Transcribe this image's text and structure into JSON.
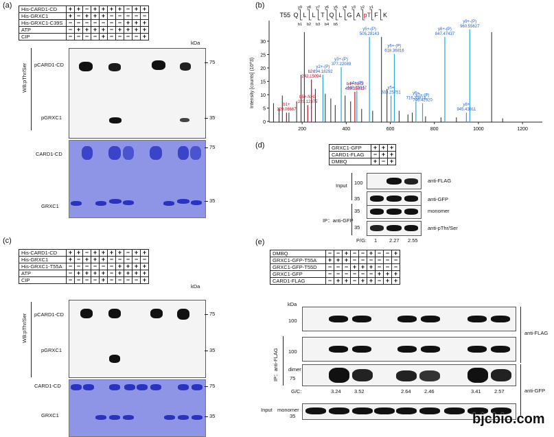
{
  "panels": {
    "a": "(a)",
    "b": "(b)",
    "c": "(c)",
    "d": "(d)",
    "e": "(e)"
  },
  "kda": "kDa",
  "a": {
    "rows": [
      {
        "name": "His-CARD1-CD",
        "signs": [
          "+",
          "+",
          "−",
          "+",
          "+",
          "+",
          "+",
          "−",
          "+",
          "+"
        ]
      },
      {
        "name": "His-GRXC1",
        "signs": [
          "+",
          "−",
          "+",
          "+",
          "+",
          "−",
          "−",
          "−",
          "−",
          "−"
        ]
      },
      {
        "name": "His-GRXC1-C39S",
        "signs": [
          "−",
          "−",
          "−",
          "−",
          "−",
          "−",
          "−",
          "+",
          "+",
          "+"
        ]
      },
      {
        "name": "ATP",
        "signs": [
          "−",
          "+",
          "+",
          "+",
          "+",
          "−",
          "+",
          "+",
          "+",
          "+"
        ]
      },
      {
        "name": "CIP",
        "signs": [
          "−",
          "−",
          "−",
          "−",
          "+",
          "−",
          "−",
          "−",
          "−",
          "+"
        ]
      }
    ],
    "wb_label": "WB:pThr/Ser",
    "band_labels": [
      "pCARD1-CD",
      "pGRXC1"
    ],
    "gel_labels": [
      "CARD1-CD",
      "GRXC1"
    ],
    "markers": [
      "75",
      "35"
    ]
  },
  "b": {
    "ylabel": "Intensity [counts] (10^3)",
    "yticks": [
      "30",
      "25",
      "20",
      "15",
      "10",
      "5",
      "0"
    ],
    "xticks": [
      "200",
      "400",
      "600",
      "800",
      "1000",
      "1200"
    ],
    "peptide_prefix": "T55",
    "sequence": [
      "Q",
      "L",
      "L",
      "T",
      "Q",
      "L",
      "G",
      "A",
      "pT",
      "F",
      "K"
    ],
    "y_ions": [
      "y9",
      "y8",
      "y7",
      "y6",
      "y5",
      "y4",
      "y3",
      "y2",
      "y1"
    ],
    "b_ions": [
      "b1",
      "b2",
      "b3",
      "b4",
      "b5"
    ],
    "peaks": [
      {
        "mz": 129.06667,
        "label": "b1+",
        "value": "129.06667",
        "color": "red"
      },
      {
        "mz": 225.12375,
        "label": "b5+-NH3",
        "value": "225.12375",
        "color": "red"
      },
      {
        "mz": 242.15094,
        "label": "b2+",
        "value": "242.15094",
        "color": "red"
      },
      {
        "mz": 294.18292,
        "label": "y2+-(P)",
        "value": "294.18292",
        "color": "blue"
      },
      {
        "mz": 377.22089,
        "label": "y3+-(P)",
        "value": "377.22089",
        "color": "blue"
      },
      {
        "mz": 439.25812,
        "label": "b4+-NH3",
        "value": "439.25812",
        "color": "red"
      },
      {
        "mz": 448.25842,
        "label": "y4+-(P)",
        "value": "448.25842",
        "color": "blue"
      },
      {
        "mz": 505.28143,
        "label": "y5+-(P)",
        "value": "505.28143",
        "color": "blue"
      },
      {
        "mz": 603.25751,
        "label": "y5+",
        "value": "603.25751",
        "color": "blue"
      },
      {
        "mz": 618.36816,
        "label": "y6+-(P)",
        "value": "618.36816",
        "color": "blue"
      },
      {
        "mz": 716.33813,
        "label": "y6+",
        "value": "716.33813",
        "color": "blue"
      },
      {
        "mz": 746.4292,
        "label": "y7+-(P)",
        "value": "746.42920",
        "color": "blue"
      },
      {
        "mz": 847.47437,
        "label": "y8+-(P)",
        "value": "847.47437",
        "color": "blue"
      },
      {
        "mz": 945.43811,
        "label": "y8+",
        "value": "945.43811",
        "color": "blue"
      },
      {
        "mz": 960.55627,
        "label": "y9+-(P)",
        "value": "960.55627",
        "color": "blue"
      }
    ]
  },
  "c": {
    "rows": [
      {
        "name": "His-CARD1-CD",
        "signs": [
          "+",
          "+",
          "−",
          "+",
          "+",
          "+",
          "+",
          "−",
          "+",
          "+"
        ]
      },
      {
        "name": "His-GRXC1",
        "signs": [
          "+",
          "−",
          "+",
          "+",
          "+",
          "−",
          "−",
          "−",
          "−",
          "−"
        ]
      },
      {
        "name": "His-GRXC1-T55A",
        "signs": [
          "−",
          "−",
          "−",
          "−",
          "−",
          "−",
          "+",
          "+",
          "+",
          "+"
        ]
      },
      {
        "name": "ATP",
        "signs": [
          "−",
          "+",
          "+",
          "+",
          "+",
          "−",
          "+",
          "+",
          "+",
          "+"
        ]
      },
      {
        "name": "CIP",
        "signs": [
          "−",
          "−",
          "−",
          "−",
          "+",
          "−",
          "−",
          "−",
          "−",
          "+"
        ]
      }
    ],
    "wb_label": "WB:pThr/Ser",
    "band_labels": [
      "pCARD1-CD",
      "pGRXC1"
    ],
    "gel_labels": [
      "CARD1-CD",
      "GRXC1"
    ],
    "markers": [
      "75",
      "35"
    ]
  },
  "d": {
    "rows": [
      {
        "name": "GRXC1-GFP",
        "signs": [
          "+",
          "+",
          "+"
        ]
      },
      {
        "name": "CARD1-FLAG",
        "signs": [
          "−",
          "+",
          "+"
        ]
      },
      {
        "name": "DMBQ",
        "signs": [
          "+",
          "−",
          "+"
        ]
      }
    ],
    "input_label": "Input",
    "ip_label": "IP：anti-GFP",
    "right_labels": [
      "anti-FLAG",
      "anti-GFP",
      "monomer",
      "anti-pThr/Ser"
    ],
    "markers": [
      "100",
      "35",
      "35",
      "35"
    ],
    "pg_label": "P/G:",
    "pg_values": [
      "1",
      "2.27",
      "2.55"
    ]
  },
  "e": {
    "rows": [
      {
        "name": "DMBQ",
        "signs": [
          "−",
          "−",
          "+",
          "−",
          "−",
          "+",
          "−",
          "−",
          "+"
        ]
      },
      {
        "name": "GRXC1-GFP-T55A",
        "signs": [
          "+",
          "+",
          "+",
          "−",
          "−",
          "−",
          "−",
          "−",
          "−"
        ]
      },
      {
        "name": "GRXC1-GFP-T55D",
        "signs": [
          "−",
          "−",
          "−",
          "+",
          "+",
          "+",
          "−",
          "−",
          "−"
        ]
      },
      {
        "name": "GRXC1-GFP",
        "signs": [
          "−",
          "−",
          "−",
          "−",
          "−",
          "−",
          "+",
          "+",
          "+"
        ]
      },
      {
        "name": "CARD1-FLAG",
        "signs": [
          "−",
          "+",
          "+",
          "−",
          "+",
          "+",
          "−",
          "+",
          "+"
        ]
      }
    ],
    "ip_label": "IP：anti-FLAG",
    "input_label": "Input",
    "right_labels": [
      "anti-FLAG",
      "anti-GFP"
    ],
    "dimer": "dimer",
    "monomer": "monomer",
    "markers": [
      "100",
      "100",
      "75",
      "35"
    ],
    "gc_label": "G/C:",
    "gc_values": [
      "",
      "3.24",
      "3.52",
      "",
      "2.64",
      "2.46",
      "",
      "3.41",
      "2.57"
    ]
  },
  "watermark": "bjcbio.com",
  "colors": {
    "red": "#d0021b",
    "blue": "#1f5fd6",
    "cyan": "#23a9d8",
    "gel": "#8f95e6"
  }
}
